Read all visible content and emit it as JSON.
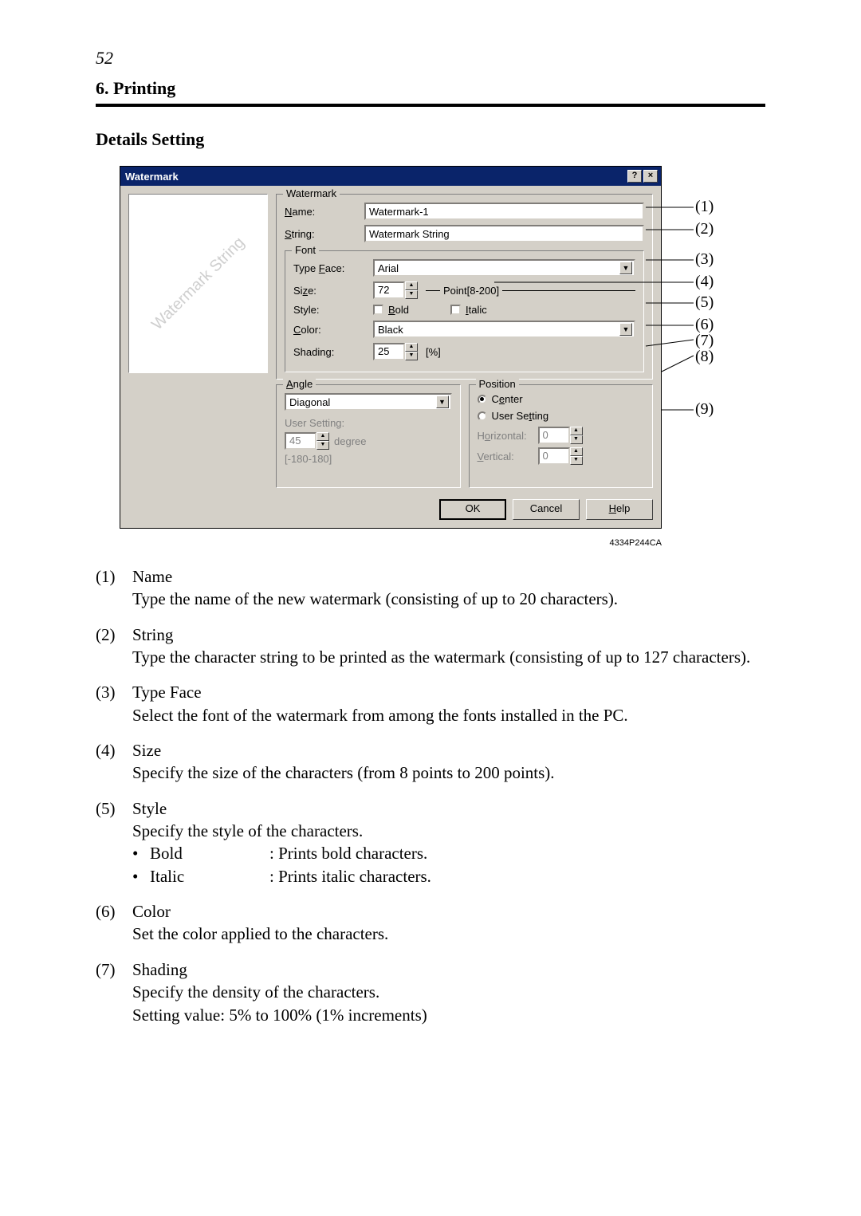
{
  "page_number": "52",
  "section": "6. Printing",
  "sub_header": "Details Setting",
  "image_id": "4334P244CA",
  "dialog": {
    "title": "Watermark",
    "help_btn": "?",
    "close_btn": "×",
    "preview_text": "Watermark String",
    "watermark_group": "Watermark",
    "name_label": "Name:",
    "name_value": "Watermark-1",
    "string_label": "String:",
    "string_value": "Watermark String",
    "font_group": "Font",
    "typeface_label": "Type Face:",
    "typeface_value": "Arial",
    "size_label": "Size:",
    "size_value": "72",
    "size_hint": "Point[8-200]",
    "style_label": "Style:",
    "bold_label": "Bold",
    "italic_label": "Italic",
    "color_label": "Color:",
    "color_value": "Black",
    "shading_label": "Shading:",
    "shading_value": "25",
    "shading_unit": "[%]",
    "angle_group": "Angle",
    "angle_value": "Diagonal",
    "angle_user_label": "User Setting:",
    "angle_user_value": "45",
    "angle_unit": "degree",
    "angle_range": "[-180-180]",
    "position_group": "Position",
    "pos_center": "Center",
    "pos_user": "User Setting",
    "pos_h_label": "Horizontal:",
    "pos_h_value": "0",
    "pos_v_label": "Vertical:",
    "pos_v_value": "0",
    "ok": "OK",
    "cancel": "Cancel",
    "help": "Help"
  },
  "callouts": {
    "c1": "(1)",
    "c2": "(2)",
    "c3": "(3)",
    "c4": "(4)",
    "c5": "(5)",
    "c6": "(6)",
    "c7": "(7)",
    "c8": "(8)",
    "c9": "(9)"
  },
  "descriptions": [
    {
      "num": "(1)",
      "title": "Name",
      "body": "Type the name of the new watermark (consisting of up to 20 characters)."
    },
    {
      "num": "(2)",
      "title": "String",
      "body": "Type the character string to be printed as the watermark (consisting of up to 127 characters)."
    },
    {
      "num": "(3)",
      "title": "Type Face",
      "body": "Select the font of the watermark from among the fonts installed in the PC."
    },
    {
      "num": "(4)",
      "title": "Size",
      "body": "Specify the size of the characters (from 8 points to 200 points)."
    },
    {
      "num": "(5)",
      "title": "Style",
      "body": "Specify the style of the characters.",
      "bullets": [
        {
          "name": "Bold",
          "desc": ": Prints bold characters."
        },
        {
          "name": "Italic",
          "desc": ": Prints italic characters."
        }
      ]
    },
    {
      "num": "(6)",
      "title": "Color",
      "body": "Set the color applied to the characters."
    },
    {
      "num": "(7)",
      "title": "Shading",
      "body": "Specify the density of the characters.",
      "body2": "Setting value: 5% to 100% (1% increments)"
    }
  ]
}
